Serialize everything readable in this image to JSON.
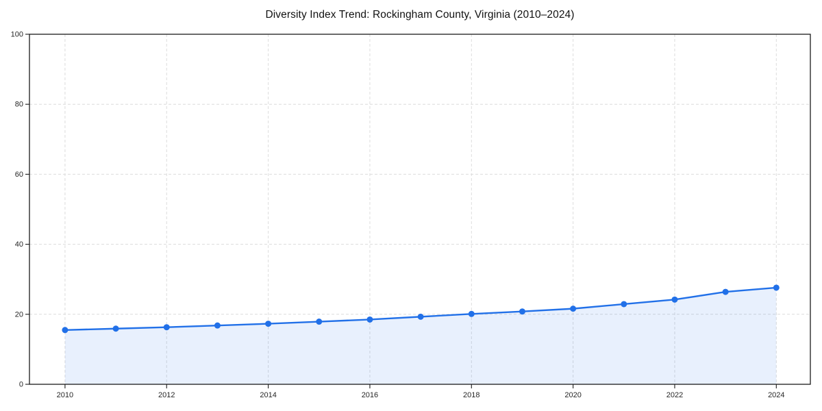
{
  "figure": {
    "background": "#ffffff"
  },
  "chart_data": {
    "type": "line",
    "title": "Diversity Index Trend: Rockingham County, Virginia (2010–2024)",
    "x": [
      2010,
      2011,
      2012,
      2013,
      2014,
      2015,
      2016,
      2017,
      2018,
      2019,
      2020,
      2021,
      2022,
      2023,
      2024
    ],
    "series": [
      {
        "name": "Diversity Index",
        "values": [
          15.5,
          15.9,
          16.3,
          16.8,
          17.3,
          17.9,
          18.5,
          19.3,
          20.1,
          20.8,
          21.6,
          22.9,
          24.2,
          26.4,
          27.6
        ],
        "color": "#2170e8",
        "marker": "circle",
        "area_fill": true,
        "fill_opacity": 0.1
      }
    ],
    "xlabel": "",
    "ylabel": "",
    "xlim": [
      2009.3,
      2024.67
    ],
    "ylim": [
      0,
      100
    ],
    "yticks": [
      0,
      20,
      40,
      60,
      80,
      100
    ],
    "ytick_labels": [
      "0",
      "20",
      "40",
      "60",
      "80",
      "100"
    ],
    "xticks": [
      2010,
      2012,
      2014,
      2016,
      2018,
      2020,
      2022,
      2024
    ],
    "xtick_labels": [
      "2010",
      "2012",
      "2014",
      "2016",
      "2018",
      "2020",
      "2022",
      "2024"
    ],
    "grid": true,
    "grid_style": "dashed",
    "grid_color": "#dcdcdc",
    "axis_box": true,
    "axis_color": "#1a1a1a",
    "tick_label_color": "#262626",
    "legend": false
  }
}
